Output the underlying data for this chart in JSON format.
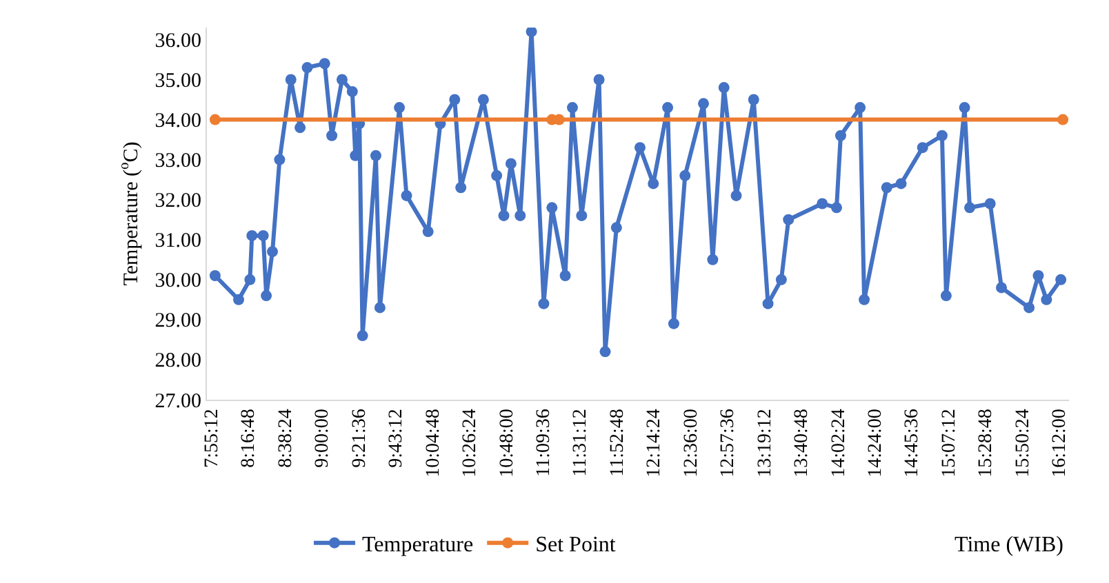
{
  "chart_data": {
    "type": "line",
    "xlabel": "Time (WIB)",
    "ylabel": "Temperature ($^{o}$C)",
    "xlim": [
      7.88,
      16.3
    ],
    "ylim": [
      27,
      36.3
    ],
    "xticks": [
      {
        "value": 7.92,
        "label": "7:55:12"
      },
      {
        "value": 8.28,
        "label": "8:16:48"
      },
      {
        "value": 8.64,
        "label": "8:38:24"
      },
      {
        "value": 9.0,
        "label": "9:00:00"
      },
      {
        "value": 9.36,
        "label": "9:21:36"
      },
      {
        "value": 9.72,
        "label": "9:43:12"
      },
      {
        "value": 10.08,
        "label": "10:04:48"
      },
      {
        "value": 10.44,
        "label": "10:26:24"
      },
      {
        "value": 10.8,
        "label": "10:48:00"
      },
      {
        "value": 11.16,
        "label": "11:09:36"
      },
      {
        "value": 11.52,
        "label": "11:31:12"
      },
      {
        "value": 11.88,
        "label": "11:52:48"
      },
      {
        "value": 12.24,
        "label": "12:14:24"
      },
      {
        "value": 12.6,
        "label": "12:36:00"
      },
      {
        "value": 12.96,
        "label": "12:57:36"
      },
      {
        "value": 13.32,
        "label": "13:19:12"
      },
      {
        "value": 13.68,
        "label": "13:40:48"
      },
      {
        "value": 14.04,
        "label": "14:02:24"
      },
      {
        "value": 14.4,
        "label": "14:24:00"
      },
      {
        "value": 14.76,
        "label": "14:45:36"
      },
      {
        "value": 15.12,
        "label": "15:07:12"
      },
      {
        "value": 15.48,
        "label": "15:28:48"
      },
      {
        "value": 15.84,
        "label": "15:50:24"
      },
      {
        "value": 16.2,
        "label": "16:12:00"
      }
    ],
    "yticks": [
      {
        "value": 27,
        "label": "27.00"
      },
      {
        "value": 28,
        "label": "28.00"
      },
      {
        "value": 29,
        "label": "29.00"
      },
      {
        "value": 30,
        "label": "30.00"
      },
      {
        "value": 31,
        "label": "31.00"
      },
      {
        "value": 32,
        "label": "32.00"
      },
      {
        "value": 33,
        "label": "33.00"
      },
      {
        "value": 34,
        "label": "34.00"
      },
      {
        "value": 35,
        "label": "35.00"
      },
      {
        "value": 36,
        "label": "36.00"
      }
    ],
    "grid": false,
    "legend": "bottom",
    "marker": "circle",
    "line_style": "solid",
    "series": [
      {
        "name": "Temperature",
        "color": "#4472c4",
        "x": [
          7.96,
          8.19,
          8.3,
          8.32,
          8.43,
          8.46,
          8.52,
          8.59,
          8.7,
          8.79,
          8.86,
          9.03,
          9.1,
          9.2,
          9.3,
          9.33,
          9.37,
          9.4,
          9.53,
          9.57,
          9.76,
          9.83,
          10.04,
          10.16,
          10.3,
          10.36,
          10.58,
          10.71,
          10.78,
          10.85,
          10.94,
          11.05,
          11.17,
          11.25,
          11.38,
          11.45,
          11.54,
          11.71,
          11.77,
          11.88,
          12.11,
          12.24,
          12.38,
          12.44,
          12.55,
          12.73,
          12.82,
          12.93,
          13.05,
          13.22,
          13.36,
          13.49,
          13.56,
          13.89,
          14.03,
          14.07,
          14.26,
          14.3,
          14.52,
          14.66,
          14.87,
          15.06,
          15.1,
          15.28,
          15.33,
          15.53,
          15.64,
          15.91,
          16.0,
          16.08,
          16.22
        ],
        "values": [
          30.1,
          29.5,
          30.0,
          31.1,
          31.1,
          29.6,
          30.7,
          33.0,
          35.0,
          33.8,
          35.3,
          35.4,
          33.6,
          35.0,
          34.7,
          33.1,
          33.9,
          28.6,
          33.1,
          29.3,
          34.3,
          32.1,
          31.2,
          33.9,
          34.5,
          32.3,
          34.5,
          32.6,
          31.6,
          32.9,
          31.6,
          36.2,
          29.4,
          31.8,
          30.1,
          34.3,
          31.6,
          35.0,
          28.2,
          31.3,
          33.3,
          32.4,
          34.3,
          28.9,
          32.6,
          34.4,
          30.5,
          34.8,
          32.1,
          34.5,
          29.4,
          30.0,
          31.5,
          31.9,
          31.8,
          33.6,
          34.3,
          29.5,
          32.3,
          32.4,
          33.3,
          33.6,
          29.6,
          34.3,
          31.8,
          31.9,
          29.8,
          29.3,
          30.1,
          29.5,
          30.0
        ]
      },
      {
        "name": "Set Point",
        "color": "#ed7d31",
        "x": [
          7.96,
          11.25,
          11.28,
          11.32,
          16.24
        ],
        "values": [
          34,
          34,
          null,
          34,
          34
        ]
      }
    ]
  }
}
